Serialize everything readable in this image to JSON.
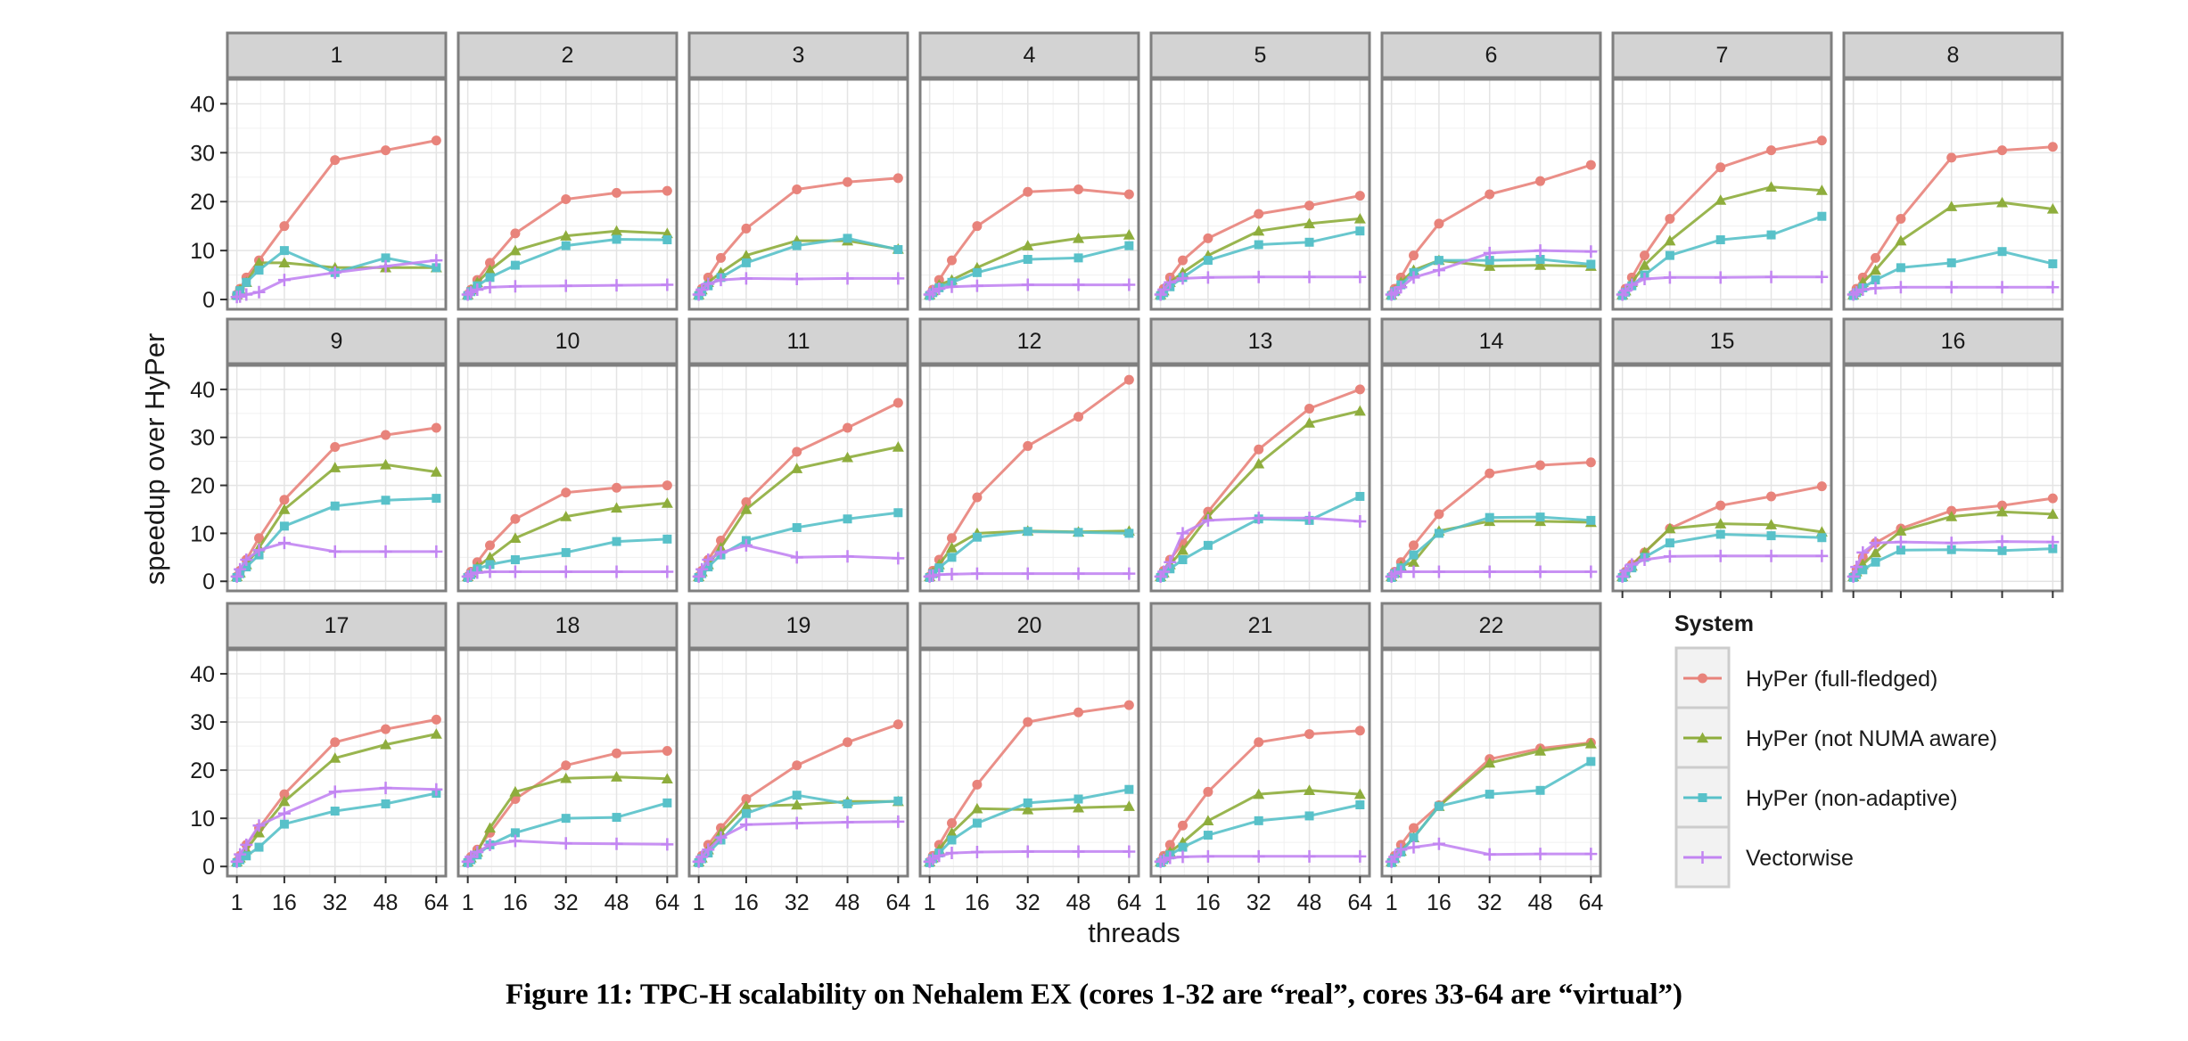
{
  "chart_data": {
    "type": "line",
    "ylabel": "speedup over HyPer",
    "xlabel": "threads",
    "ylim": [
      -2,
      45
    ],
    "yticks": [
      0,
      10,
      20,
      30,
      40
    ],
    "xlim": [
      -2,
      67
    ],
    "xticks": [
      1,
      16,
      32,
      48,
      64
    ],
    "x": [
      1,
      2,
      4,
      8,
      16,
      32,
      48,
      64
    ],
    "legend": {
      "title": "System",
      "position": "bottom-right",
      "entries": [
        {
          "name": "HyPer (full-fledged)",
          "color": "#e8837b",
          "marker": "circle"
        },
        {
          "name": "HyPer (not NUMA aware)",
          "color": "#8ead3c",
          "marker": "triangle"
        },
        {
          "name": "HyPer (non-adaptive)",
          "color": "#58c1c9",
          "marker": "square"
        },
        {
          "name": "Vectorwise",
          "color": "#c285f2",
          "marker": "plus"
        }
      ]
    },
    "panels": [
      {
        "label": "1",
        "series": [
          [
            1.0,
            2.2,
            4.5,
            8,
            15,
            28.5,
            30.5,
            32.5
          ],
          [
            1,
            2,
            3.5,
            7.5,
            7.5,
            6.5,
            6.5,
            6.5
          ],
          [
            0.8,
            1.8,
            3.5,
            6,
            10,
            5.5,
            8.5,
            6.5
          ],
          [
            0.5,
            0.6,
            1,
            1.5,
            4,
            5.5,
            6.8,
            8
          ]
        ]
      },
      {
        "label": "2",
        "series": [
          [
            1,
            2,
            4,
            7.5,
            13.5,
            20.5,
            21.8,
            22.2
          ],
          [
            1,
            2,
            3.5,
            6,
            10,
            13,
            14,
            13.5
          ],
          [
            0.8,
            1.6,
            2.8,
            4.5,
            7,
            11,
            12.3,
            12.2
          ],
          [
            1,
            1.5,
            2,
            2.5,
            2.7,
            2.8,
            2.9,
            3
          ]
        ]
      },
      {
        "label": "3",
        "series": [
          [
            1,
            2.2,
            4.5,
            8.5,
            14.5,
            22.5,
            24,
            24.8
          ],
          [
            1,
            2,
            3.5,
            5.5,
            9,
            12,
            12,
            10.3
          ],
          [
            0.8,
            1.6,
            2.8,
            4.5,
            7.5,
            11,
            12.5,
            10.2
          ],
          [
            1,
            2,
            3.2,
            4,
            4.3,
            4.2,
            4.3,
            4.3
          ]
        ]
      },
      {
        "label": "4",
        "series": [
          [
            1,
            2,
            4,
            8,
            15,
            22,
            22.5,
            21.5
          ],
          [
            1,
            1.8,
            3,
            4,
            6.5,
            11,
            12.5,
            13.2
          ],
          [
            0.8,
            1.4,
            2.4,
            3.5,
            5.5,
            8.2,
            8.5,
            11
          ],
          [
            1,
            1.6,
            2.2,
            2.6,
            2.8,
            3,
            3,
            3
          ]
        ]
      },
      {
        "label": "5",
        "series": [
          [
            1,
            2.2,
            4.5,
            8,
            12.5,
            17.5,
            19.2,
            21.2
          ],
          [
            1,
            1.8,
            3.5,
            5.5,
            9,
            14,
            15.5,
            16.5
          ],
          [
            0.8,
            1.4,
            2.6,
            4.5,
            8,
            11.2,
            11.7,
            14
          ],
          [
            1,
            2,
            3.5,
            4.3,
            4.5,
            4.6,
            4.6,
            4.6
          ]
        ]
      },
      {
        "label": "6",
        "series": [
          [
            1,
            2.2,
            4.5,
            9,
            15.5,
            21.5,
            24.2,
            27.5
          ],
          [
            1,
            1.8,
            3.5,
            6,
            8,
            6.8,
            7,
            6.8
          ],
          [
            0.8,
            1.6,
            3,
            5.5,
            8,
            8,
            8.2,
            7.2
          ],
          [
            1,
            1.4,
            2.5,
            4.5,
            6,
            9.5,
            10,
            9.8
          ]
        ]
      },
      {
        "label": "7",
        "series": [
          [
            1,
            2.2,
            4.5,
            9,
            16.5,
            27,
            30.5,
            32.5
          ],
          [
            1,
            1.8,
            3.5,
            7,
            12,
            20.3,
            23,
            22.3
          ],
          [
            0.8,
            1.5,
            2.8,
            5,
            9,
            12.2,
            13.2,
            17
          ],
          [
            1,
            1.8,
            3,
            4.2,
            4.5,
            4.5,
            4.6,
            4.6
          ]
        ]
      },
      {
        "label": "8",
        "series": [
          [
            1,
            2.2,
            4.5,
            8.5,
            16.5,
            29,
            30.5,
            31.2
          ],
          [
            1,
            1.8,
            3.5,
            6,
            12,
            19,
            19.8,
            18.5
          ],
          [
            0.8,
            1.4,
            2.4,
            4,
            6.5,
            7.5,
            9.8,
            7.3
          ],
          [
            1,
            1.5,
            2,
            2.3,
            2.5,
            2.5,
            2.5,
            2.5
          ]
        ]
      },
      {
        "label": "9",
        "series": [
          [
            1,
            2.2,
            4.5,
            9,
            17,
            28,
            30.5,
            32
          ],
          [
            1,
            1.8,
            3.5,
            7,
            15,
            23.7,
            24.3,
            22.8
          ],
          [
            0.8,
            1.6,
            3,
            5.5,
            11.5,
            15.7,
            16.9,
            17.3
          ],
          [
            1,
            2.5,
            4.5,
            6.5,
            8,
            6.2,
            6.2,
            6.2
          ]
        ]
      },
      {
        "label": "10",
        "series": [
          [
            1,
            2,
            4,
            7.5,
            13,
            18.5,
            19.5,
            20
          ],
          [
            1,
            1.8,
            3,
            5,
            9,
            13.5,
            15.3,
            16.3
          ],
          [
            0.8,
            1.4,
            2.6,
            3.5,
            4.5,
            6,
            8.3,
            8.8
          ],
          [
            1,
            1.5,
            1.8,
            2,
            2,
            2,
            2,
            2
          ]
        ]
      },
      {
        "label": "11",
        "series": [
          [
            1,
            2.2,
            4.5,
            8.5,
            16.5,
            27,
            32,
            37.2
          ],
          [
            1,
            2,
            3.5,
            7,
            15,
            23.5,
            25.8,
            28
          ],
          [
            0.8,
            1.6,
            3,
            5.5,
            8.5,
            11.2,
            13,
            14.3
          ],
          [
            1,
            2.5,
            4.5,
            6,
            7.5,
            5,
            5.2,
            4.8
          ]
        ]
      },
      {
        "label": "12",
        "series": [
          [
            1,
            2.2,
            4.5,
            9,
            17.5,
            28.2,
            34.3,
            42
          ],
          [
            1,
            1.8,
            3.5,
            7,
            10,
            10.5,
            10.3,
            10.5
          ],
          [
            0.8,
            1.6,
            2.8,
            5,
            9.2,
            10.4,
            10.2,
            10
          ]
        ],
        "extra": [
          1,
          1.2,
          1.4,
          1.5,
          1.6,
          1.6,
          1.6,
          1.6
        ]
      },
      {
        "label": "13",
        "series": [
          [
            1,
            2.2,
            4.5,
            8,
            14.5,
            27.5,
            36,
            40
          ],
          [
            1,
            1.8,
            3.5,
            6.5,
            13.5,
            24.5,
            33,
            35.5
          ],
          [
            0.8,
            1.6,
            2.6,
            4.5,
            7.5,
            13,
            12.7,
            17.7
          ],
          [
            1,
            2,
            4,
            10,
            12.7,
            13.2,
            13.2,
            12.5
          ]
        ]
      },
      {
        "label": "14",
        "series": [
          [
            1,
            2,
            4,
            7.5,
            14,
            22.5,
            24.2,
            24.8
          ],
          [
            1,
            1.8,
            3.2,
            4,
            10.5,
            12.5,
            12.5,
            12.3
          ],
          [
            0.8,
            1.6,
            2.8,
            5.5,
            10,
            13.3,
            13.4,
            12.7
          ],
          [
            1,
            1.6,
            2,
            2,
            2,
            2,
            2,
            2
          ]
        ]
      },
      {
        "label": "15",
        "series": [
          [
            1,
            2,
            3.5,
            6,
            11,
            15.8,
            17.7,
            19.8
          ],
          [
            1,
            1.8,
            3.2,
            6,
            11,
            12,
            11.8,
            10.3
          ],
          [
            0.8,
            1.6,
            2.8,
            5,
            8,
            9.8,
            9.5,
            9.1
          ],
          [
            1,
            2.2,
            3.5,
            4.5,
            5.2,
            5.3,
            5.3,
            5.3
          ]
        ]
      },
      {
        "label": "16",
        "series": [
          [
            1,
            2.5,
            5,
            8,
            11,
            14.7,
            15.8,
            17.3
          ],
          [
            1,
            2,
            3.5,
            6,
            10.5,
            13.5,
            14.5,
            14
          ],
          [
            0.8,
            1.4,
            2.4,
            4,
            6.5,
            6.6,
            6.4,
            6.8
          ],
          [
            1,
            3,
            6,
            8,
            8.2,
            8,
            8.3,
            8.2
          ]
        ]
      },
      {
        "label": "17",
        "series": [
          [
            1,
            2.2,
            4.5,
            8,
            15,
            25.8,
            28.5,
            30.5
          ],
          [
            1,
            1.8,
            3.5,
            7,
            13.5,
            22.5,
            25.3,
            27.5
          ],
          [
            0.8,
            1.4,
            2.2,
            4,
            8.8,
            11.5,
            13,
            15.2
          ],
          [
            1,
            2.5,
            4.5,
            8.5,
            11,
            15.5,
            16.3,
            16
          ]
        ]
      },
      {
        "label": "18",
        "series": [
          [
            1,
            2,
            3.5,
            7,
            14,
            21,
            23.5,
            24
          ]
        ],
        "more": [
          [
            1,
            1.8,
            3,
            8,
            15.5,
            18.3,
            18.6,
            18.2
          ],
          [
            0.8,
            1.4,
            2.4,
            4.5,
            7,
            10,
            10.2,
            13.2
          ],
          [
            1,
            2,
            3,
            4.5,
            5.3,
            4.8,
            4.7,
            4.6
          ]
        ]
      },
      {
        "label": "19",
        "series": [
          [
            1,
            2.2,
            4.5,
            8,
            14,
            21,
            25.8,
            29.5
          ],
          [
            1,
            1.8,
            3.5,
            7,
            12.5,
            12.8,
            13.5,
            13.5
          ],
          [
            0.8,
            1.6,
            2.8,
            5.5,
            11,
            14.8,
            13,
            13.6
          ],
          [
            1,
            2,
            3.5,
            6,
            8.7,
            9,
            9.2,
            9.3
          ]
        ]
      },
      {
        "label": "20",
        "series": [
          [
            1,
            2.2,
            4.5,
            9,
            17,
            30,
            32,
            33.5
          ],
          [
            1,
            1.8,
            3.5,
            7,
            12,
            11.8,
            12.2,
            12.5
          ],
          [
            0.8,
            1.6,
            2.8,
            5.5,
            9,
            13.2,
            14,
            16
          ],
          [
            1,
            1.6,
            2.2,
            2.8,
            3,
            3.1,
            3.1,
            3.1
          ]
        ]
      },
      {
        "label": "21",
        "series": [
          [
            1,
            2.2,
            4.5,
            8.5,
            15.5,
            25.8,
            27.5,
            28.2
          ],
          [
            1,
            1.8,
            3,
            5,
            9.5,
            15,
            15.8,
            15
          ],
          [
            0.8,
            1.4,
            2.4,
            4,
            6.5,
            9.5,
            10.5,
            12.8
          ],
          [
            1,
            1.4,
            1.8,
            2,
            2.1,
            2.1,
            2.1,
            2.1
          ]
        ]
      },
      {
        "label": "22",
        "series": [
          [
            1,
            2.2,
            4.5,
            8,
            12.7,
            22.3,
            24.5,
            25.7
          ],
          [
            1,
            1.8,
            3.2,
            6,
            12.5,
            21.5,
            24,
            25.5
          ],
          [
            0.8,
            1.6,
            3,
            6,
            12.5,
            15,
            15.8,
            21.8
          ],
          [
            1,
            2,
            3.5,
            4,
            4.7,
            2.5,
            2.6,
            2.6
          ]
        ]
      }
    ]
  },
  "caption": "Figure 11: TPC-H scalability on Nehalem EX (cores 1-32 are “real”, cores 33-64 are “virtual”)"
}
